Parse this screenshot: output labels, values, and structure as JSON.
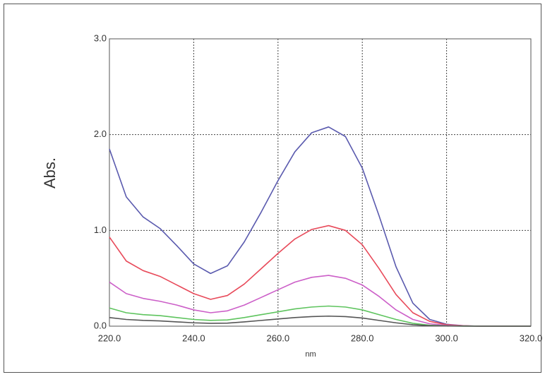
{
  "chart_data": {
    "type": "line",
    "x_label": "nm",
    "y_label": "Abs.",
    "x": [
      220,
      224,
      228,
      232,
      236,
      240,
      244,
      248,
      252,
      256,
      260,
      264,
      268,
      272,
      276,
      280,
      284,
      288,
      292,
      296,
      300,
      304,
      308,
      312,
      316,
      320
    ],
    "series": [
      {
        "color": "#5a5aae",
        "values": [
          1.85,
          1.35,
          1.14,
          1.02,
          0.84,
          0.65,
          0.55,
          0.63,
          0.88,
          1.19,
          1.52,
          1.82,
          2.02,
          2.08,
          1.98,
          1.65,
          1.15,
          0.62,
          0.24,
          0.07,
          0.02,
          0.005,
          0,
          0,
          0,
          0
        ]
      },
      {
        "color": "#e84a5a",
        "values": [
          0.93,
          0.68,
          0.58,
          0.52,
          0.43,
          0.34,
          0.28,
          0.32,
          0.44,
          0.6,
          0.76,
          0.91,
          1.01,
          1.05,
          1.0,
          0.85,
          0.6,
          0.33,
          0.14,
          0.05,
          0.015,
          0.004,
          0,
          0,
          0,
          0
        ]
      },
      {
        "color": "#cc5fc8",
        "values": [
          0.46,
          0.34,
          0.29,
          0.26,
          0.22,
          0.17,
          0.14,
          0.16,
          0.22,
          0.3,
          0.38,
          0.46,
          0.51,
          0.53,
          0.5,
          0.43,
          0.31,
          0.17,
          0.07,
          0.025,
          0.008,
          0.002,
          0,
          0,
          0,
          0
        ]
      },
      {
        "color": "#5ec45e",
        "values": [
          0.19,
          0.14,
          0.12,
          0.11,
          0.09,
          0.07,
          0.06,
          0.065,
          0.09,
          0.12,
          0.15,
          0.18,
          0.2,
          0.21,
          0.2,
          0.17,
          0.12,
          0.07,
          0.03,
          0.01,
          0.003,
          0.001,
          0,
          0,
          0,
          0
        ]
      },
      {
        "color": "#555555",
        "values": [
          0.09,
          0.07,
          0.06,
          0.055,
          0.045,
          0.035,
          0.03,
          0.032,
          0.045,
          0.06,
          0.075,
          0.09,
          0.1,
          0.105,
          0.1,
          0.085,
          0.06,
          0.035,
          0.015,
          0.005,
          0.002,
          0,
          0,
          0,
          0,
          0
        ]
      }
    ],
    "xlim": [
      220,
      320
    ],
    "xticks": [
      {
        "value": 220,
        "label": "220.0"
      },
      {
        "value": 240,
        "label": "240.0"
      },
      {
        "value": 260,
        "label": "260.0"
      },
      {
        "value": 280,
        "label": "280.0"
      },
      {
        "value": 300,
        "label": "300.0"
      },
      {
        "value": 320,
        "label": "320.0"
      }
    ],
    "ylim": [
      0,
      3
    ],
    "yticks": [
      {
        "value": 0,
        "label": "0.0"
      },
      {
        "value": 1,
        "label": "1.0"
      },
      {
        "value": 2,
        "label": "2.0"
      },
      {
        "value": 3,
        "label": "3.0"
      }
    ],
    "grid": true
  }
}
